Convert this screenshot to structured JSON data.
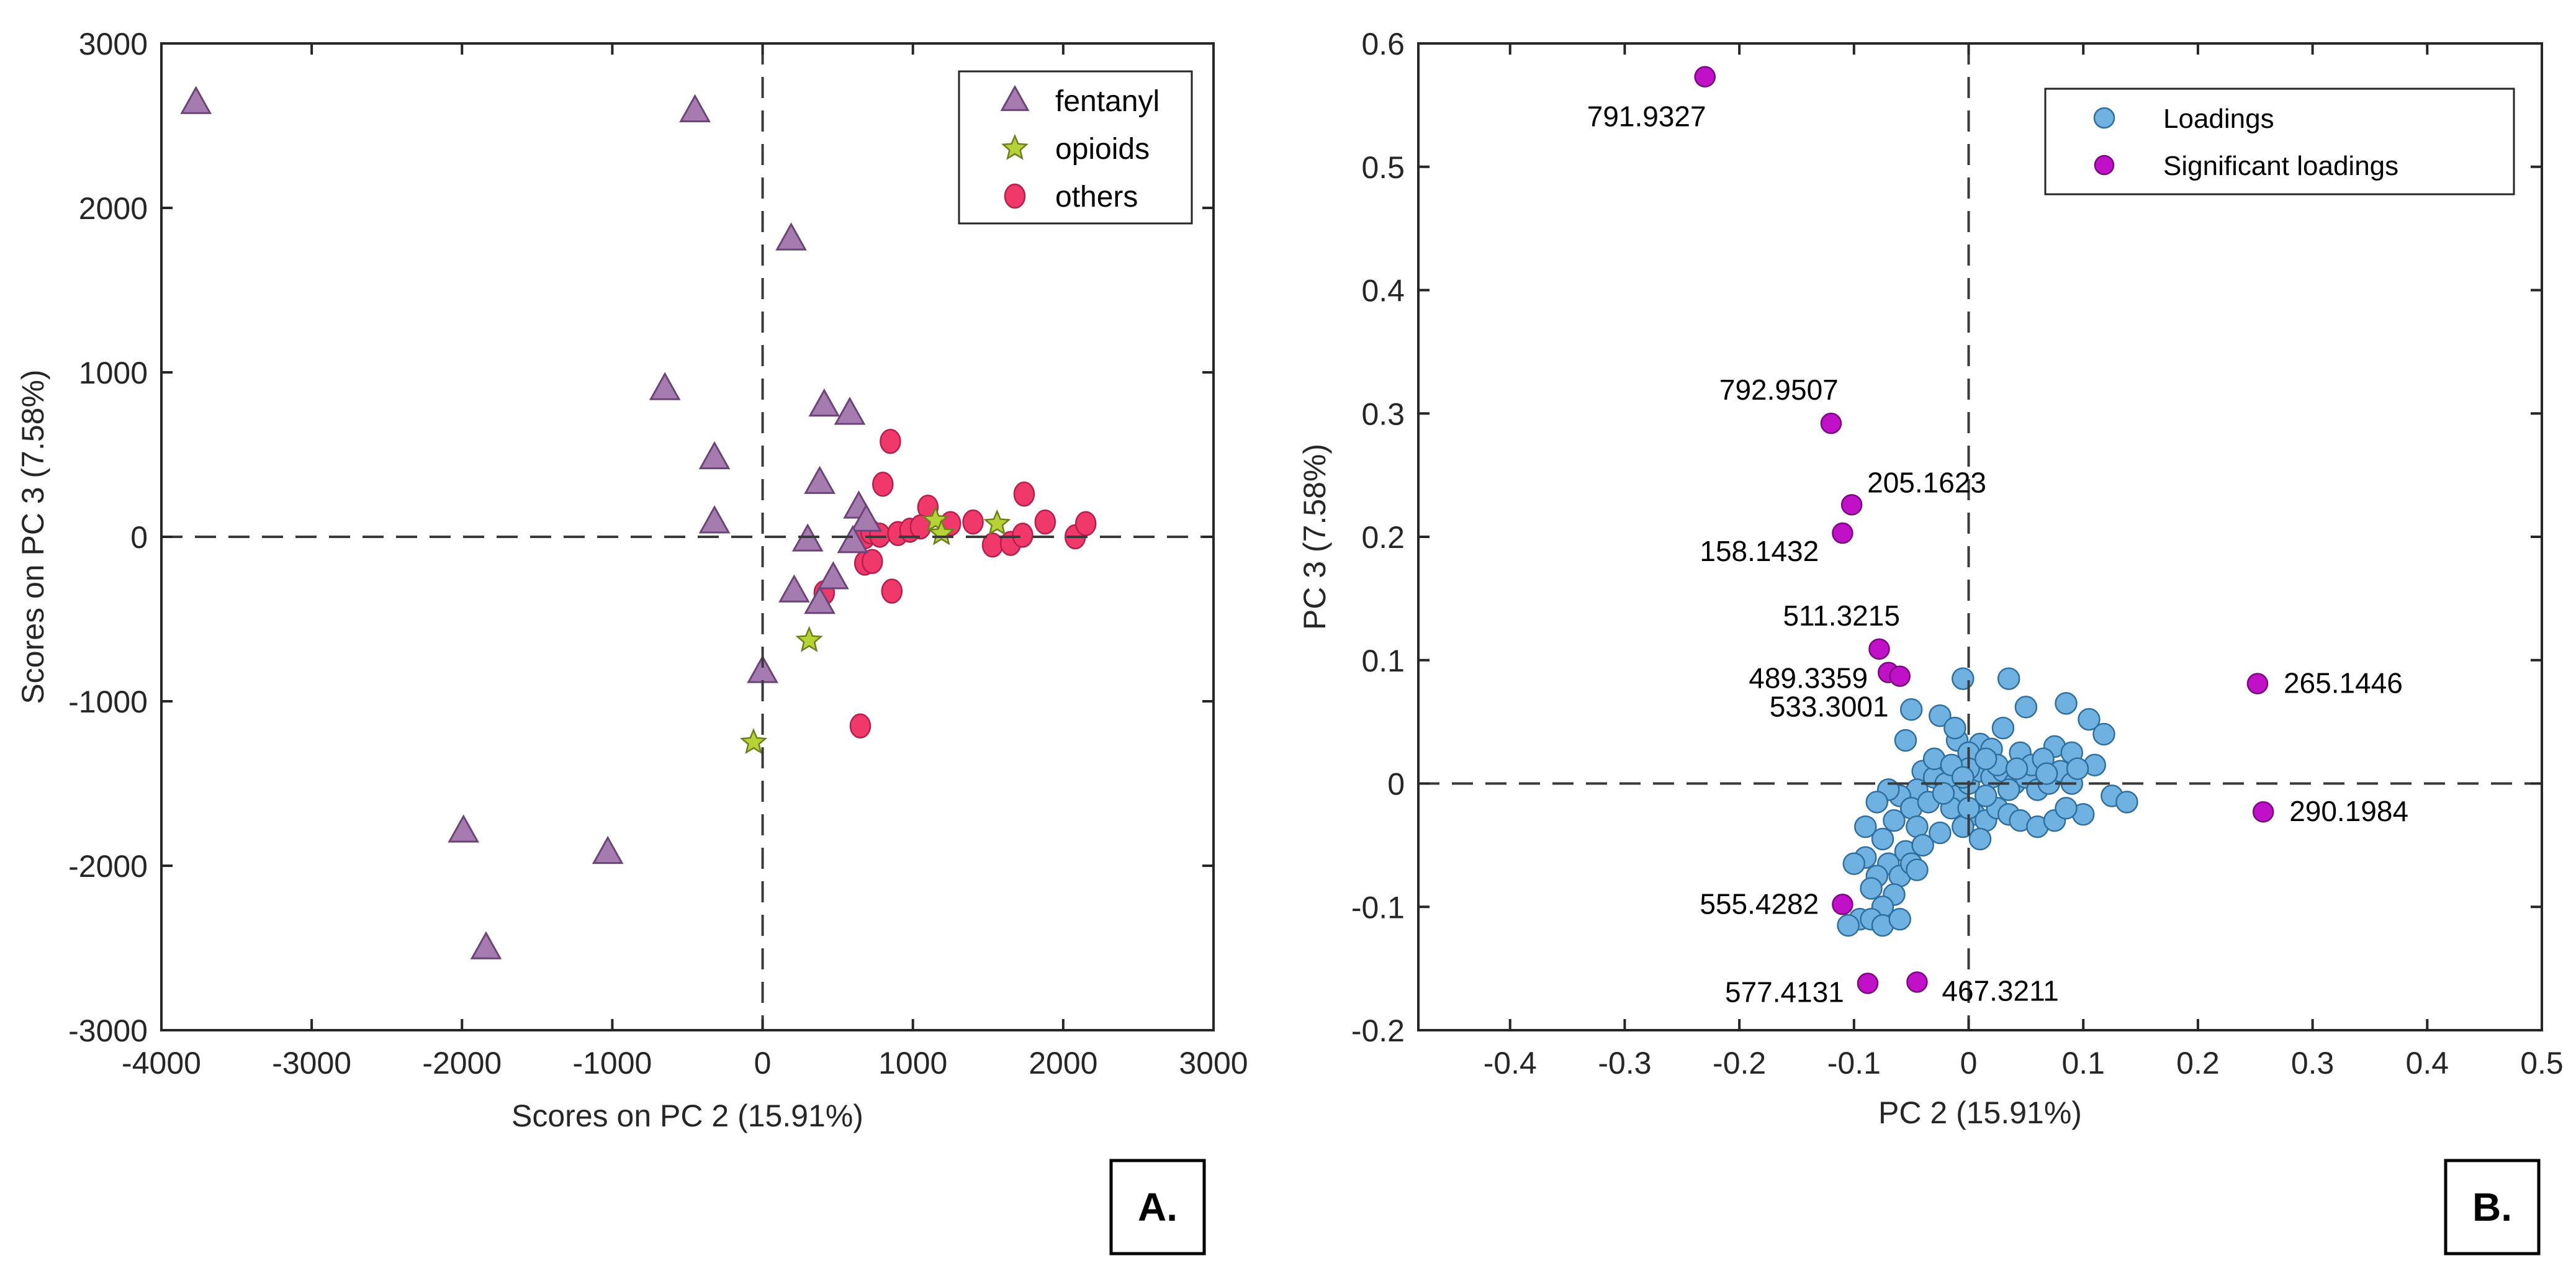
{
  "colors": {
    "fentanyl": "#a57bb0",
    "fentanyl_edge": "#6b4577",
    "opioids": "#b5d334",
    "opioids_edge": "#6d7d1f",
    "others": "#f0386b",
    "others_edge": "#b5204b",
    "loadings": "#6fb2e1",
    "loadings_edge": "#2f6f9e",
    "significant": "#c010c8",
    "significant_edge": "#7a087f",
    "axis": "#262626",
    "zero_line": "#3a3a3a"
  },
  "chart_data": [
    {
      "type": "scatter",
      "panel": "A.",
      "xlabel": "Scores on PC 2 (15.91%)",
      "ylabel": "Scores on PC 3 (7.58%)",
      "xlim": [
        -4000,
        3000
      ],
      "ylim": [
        -3000,
        3000
      ],
      "xticks": [
        -4000,
        -3000,
        -2000,
        -1000,
        0,
        1000,
        2000,
        3000
      ],
      "yticks": [
        -3000,
        -2000,
        -1000,
        0,
        1000,
        2000,
        3000
      ],
      "legend_position": "top-right",
      "series": [
        {
          "name": "fentanyl",
          "marker": "triangle",
          "points": [
            [
              -3770,
              2640
            ],
            [
              -450,
              2590
            ],
            [
              190,
              1810
            ],
            [
              -650,
              900
            ],
            [
              -320,
              480
            ],
            [
              410,
              800
            ],
            [
              580,
              750
            ],
            [
              380,
              330
            ],
            [
              -320,
              90
            ],
            [
              640,
              180
            ],
            [
              690,
              100
            ],
            [
              300,
              -20
            ],
            [
              600,
              -30
            ],
            [
              470,
              -250
            ],
            [
              210,
              -330
            ],
            [
              380,
              -400
            ],
            [
              0,
              -820
            ],
            [
              -1990,
              -1790
            ],
            [
              -1030,
              -1920
            ],
            [
              -1840,
              -2500
            ]
          ]
        },
        {
          "name": "opioids",
          "marker": "star",
          "points": [
            [
              1150,
              100
            ],
            [
              1190,
              20
            ],
            [
              1560,
              80
            ],
            [
              310,
              -630
            ],
            [
              -60,
              -1250
            ]
          ]
        },
        {
          "name": "others",
          "marker": "circle",
          "points": [
            [
              850,
              580
            ],
            [
              800,
              320
            ],
            [
              1100,
              180
            ],
            [
              1740,
              260
            ],
            [
              680,
              0
            ],
            [
              720,
              30
            ],
            [
              780,
              10
            ],
            [
              900,
              20
            ],
            [
              980,
              40
            ],
            [
              1050,
              60
            ],
            [
              1250,
              80
            ],
            [
              1400,
              90
            ],
            [
              1530,
              -50
            ],
            [
              1650,
              -40
            ],
            [
              1730,
              10
            ],
            [
              1880,
              90
            ],
            [
              2080,
              0
            ],
            [
              2150,
              80
            ],
            [
              680,
              -160
            ],
            [
              730,
              -150
            ],
            [
              410,
              -340
            ],
            [
              860,
              -330
            ],
            [
              650,
              -1150
            ]
          ]
        }
      ]
    },
    {
      "type": "scatter",
      "panel": "B.",
      "xlabel": "PC 2 (15.91%)",
      "ylabel": "PC 3 (7.58%)",
      "xlim": [
        -0.48,
        0.5
      ],
      "ylim": [
        -0.2,
        0.6
      ],
      "xticks": [
        -0.4,
        -0.3,
        -0.2,
        -0.1,
        0,
        0.1,
        0.2,
        0.3,
        0.4,
        0.5
      ],
      "xtick_labels": [
        "-0.4",
        "-0.3",
        "-0.2",
        "-0.1",
        "0",
        "0.1",
        "0.2",
        "0.3",
        "0.4",
        "0.5"
      ],
      "yticks": [
        -0.2,
        -0.1,
        0,
        0.1,
        0.2,
        0.3,
        0.4,
        0.5,
        0.6
      ],
      "ytick_labels": [
        "-0.2",
        "-0.1",
        "0",
        "0.1",
        "0.2",
        "0.3",
        "0.4",
        "0.5",
        "0.6"
      ],
      "legend_position": "top-right",
      "series": [
        {
          "name": "Loadings",
          "marker": "circle",
          "points": [
            [
              -0.005,
              0.085
            ],
            [
              0.035,
              0.085
            ],
            [
              0.085,
              0.065
            ],
            [
              0.05,
              0.062
            ],
            [
              0.105,
              0.052
            ],
            [
              0.118,
              0.04
            ],
            [
              -0.05,
              0.06
            ],
            [
              -0.025,
              0.055
            ],
            [
              -0.055,
              0.035
            ],
            [
              -0.01,
              0.035
            ],
            [
              0.01,
              0.032
            ],
            [
              0.0,
              0.025
            ],
            [
              0.02,
              0.028
            ],
            [
              0.045,
              0.025
            ],
            [
              0.075,
              0.03
            ],
            [
              0.09,
              0.025
            ],
            [
              0.11,
              0.015
            ],
            [
              0.125,
              -0.01
            ],
            [
              0.138,
              -0.015
            ],
            [
              0.1,
              -0.025
            ],
            [
              -0.04,
              0.01
            ],
            [
              -0.03,
              0.005
            ],
            [
              -0.045,
              -0.005
            ],
            [
              -0.02,
              0.0
            ],
            [
              -0.01,
              -0.01
            ],
            [
              0.0,
              0.0
            ],
            [
              0.01,
              0.01
            ],
            [
              0.02,
              0.005
            ],
            [
              0.03,
              0.01
            ],
            [
              0.04,
              0.0
            ],
            [
              0.05,
              0.005
            ],
            [
              0.06,
              -0.005
            ],
            [
              0.07,
              0.0
            ],
            [
              0.08,
              0.01
            ],
            [
              0.09,
              0.0
            ],
            [
              0.055,
              0.015
            ],
            [
              0.065,
              0.02
            ],
            [
              -0.06,
              -0.01
            ],
            [
              -0.07,
              -0.005
            ],
            [
              -0.05,
              -0.02
            ],
            [
              -0.035,
              -0.015
            ],
            [
              -0.015,
              -0.02
            ],
            [
              0.005,
              -0.025
            ],
            [
              0.015,
              -0.03
            ],
            [
              0.025,
              -0.02
            ],
            [
              0.035,
              -0.025
            ],
            [
              0.045,
              -0.03
            ],
            [
              0.06,
              -0.035
            ],
            [
              0.075,
              -0.03
            ],
            [
              0.085,
              -0.02
            ],
            [
              -0.08,
              -0.015
            ],
            [
              -0.065,
              -0.03
            ],
            [
              -0.045,
              -0.035
            ],
            [
              -0.025,
              -0.04
            ],
            [
              -0.005,
              -0.035
            ],
            [
              0.01,
              -0.045
            ],
            [
              -0.09,
              -0.035
            ],
            [
              -0.075,
              -0.045
            ],
            [
              -0.055,
              -0.055
            ],
            [
              -0.04,
              -0.05
            ],
            [
              -0.07,
              -0.065
            ],
            [
              -0.09,
              -0.06
            ],
            [
              -0.1,
              -0.065
            ],
            [
              -0.06,
              -0.075
            ],
            [
              -0.08,
              -0.075
            ],
            [
              -0.05,
              -0.065
            ],
            [
              -0.085,
              -0.085
            ],
            [
              -0.065,
              -0.09
            ],
            [
              -0.075,
              -0.1
            ],
            [
              -0.095,
              -0.11
            ],
            [
              -0.085,
              -0.11
            ],
            [
              -0.075,
              -0.115
            ],
            [
              -0.06,
              -0.11
            ],
            [
              -0.105,
              -0.115
            ],
            [
              -0.045,
              -0.07
            ],
            [
              0.0,
              -0.02
            ],
            [
              -0.03,
              0.02
            ],
            [
              0.025,
              0.015
            ],
            [
              0.0,
              0.012
            ],
            [
              -0.015,
              0.015
            ],
            [
              0.015,
              -0.01
            ],
            [
              0.035,
              -0.005
            ],
            [
              -0.005,
              0.005
            ],
            [
              0.042,
              0.012
            ],
            [
              -0.022,
              -0.008
            ],
            [
              0.068,
              0.008
            ],
            [
              0.095,
              0.012
            ],
            [
              0.03,
              0.045
            ],
            [
              -0.012,
              0.045
            ],
            [
              0.015,
              0.02
            ]
          ]
        },
        {
          "name": "Significant loadings",
          "marker": "circle",
          "points": [
            [
              -0.23,
              0.573
            ],
            [
              -0.12,
              0.292
            ],
            [
              -0.102,
              0.226
            ],
            [
              -0.11,
              0.203
            ],
            [
              -0.078,
              0.109
            ],
            [
              -0.07,
              0.09
            ],
            [
              -0.06,
              0.087
            ],
            [
              0.252,
              0.081
            ],
            [
              0.257,
              -0.023
            ],
            [
              -0.11,
              -0.098
            ],
            [
              -0.088,
              -0.162
            ],
            [
              -0.045,
              -0.161
            ]
          ],
          "labels": [
            "791.9327",
            "792.9507",
            "205.1623",
            "158.1432",
            "511.3215",
            "489.3359",
            "533.3001",
            "265.1446",
            "290.1984",
            "555.4282",
            "577.4131",
            "467.3211"
          ]
        }
      ]
    }
  ]
}
